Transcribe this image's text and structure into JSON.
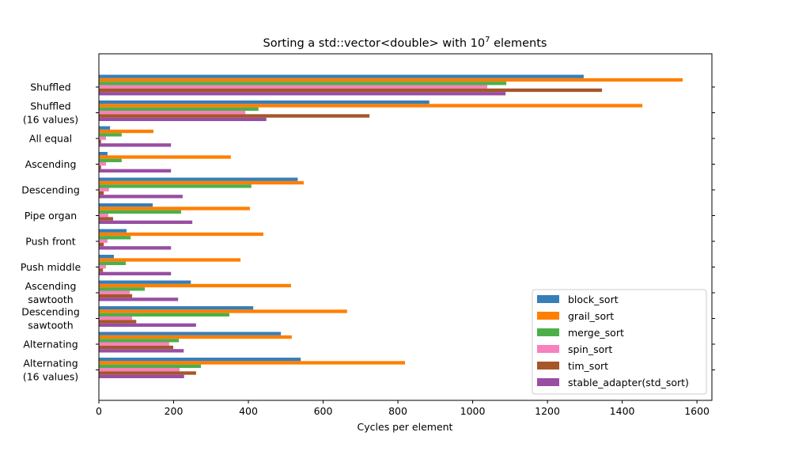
{
  "chart_data": {
    "type": "bar",
    "orientation": "horizontal",
    "title": "Sorting a std::vector<double> with 10",
    "title_superscript": "7",
    "title_suffix": " elements",
    "xlabel": "Cycles per element",
    "ylabel": "",
    "xlim": [
      0,
      1640
    ],
    "xticks": [
      0,
      200,
      400,
      600,
      800,
      1000,
      1200,
      1400,
      1600
    ],
    "grid": false,
    "legend_position": "lower-right",
    "categories": [
      [
        "Shuffled"
      ],
      [
        "Shuffled",
        "(16 values)"
      ],
      [
        "All equal"
      ],
      [
        "Ascending"
      ],
      [
        "Descending"
      ],
      [
        "Pipe organ"
      ],
      [
        "Push front"
      ],
      [
        "Push middle"
      ],
      [
        "Ascending",
        "sawtooth"
      ],
      [
        "Descending",
        "sawtooth"
      ],
      [
        "Alternating"
      ],
      [
        "Alternating",
        "(16 values)"
      ]
    ],
    "series": [
      {
        "name": "block_sort",
        "color": "#377eb8",
        "values": [
          1297,
          884,
          30,
          23,
          532,
          144,
          74,
          40,
          246,
          413,
          487,
          540
        ]
      },
      {
        "name": "grail_sort",
        "color": "#ff7f00",
        "values": [
          1562,
          1454,
          146,
          353,
          548,
          404,
          440,
          379,
          514,
          664,
          516,
          819
        ]
      },
      {
        "name": "merge_sort",
        "color": "#4daf4a",
        "values": [
          1090,
          427,
          61,
          61,
          408,
          220,
          85,
          72,
          123,
          349,
          214,
          273
        ]
      },
      {
        "name": "spin_sort",
        "color": "#f781bf",
        "values": [
          1039,
          392,
          19,
          19,
          27,
          25,
          23,
          19,
          83,
          89,
          188,
          216
        ]
      },
      {
        "name": "tim_sort",
        "color": "#a65628",
        "values": [
          1346,
          724,
          6,
          6,
          13,
          38,
          13,
          11,
          89,
          100,
          199,
          260
        ]
      },
      {
        "name": "stable_adapter(std_sort)",
        "color": "#984ea3",
        "values": [
          1088,
          448,
          193,
          193,
          224,
          250,
          193,
          193,
          212,
          260,
          227,
          228
        ]
      }
    ]
  }
}
